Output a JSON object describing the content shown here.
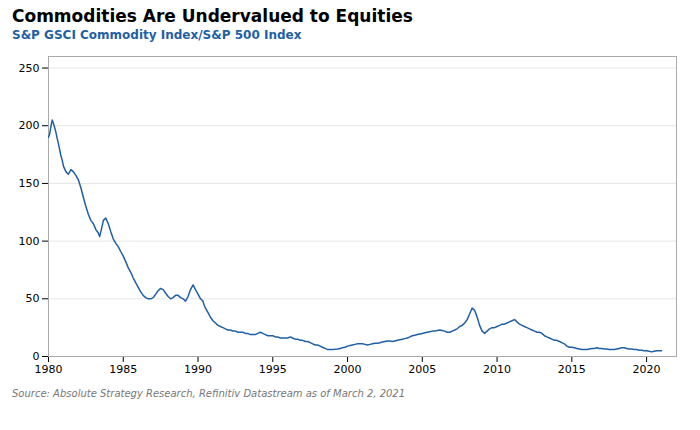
{
  "chart_data": {
    "type": "line",
    "title": "Commodities Are Undervalued to Equities",
    "subtitle": "S&P GSCI Commodity Index/S&P 500 Index",
    "source": "Source: Absolute Strategy Research, Refinitiv Datastream as of March 2, 2021",
    "color": "#1f5fa6",
    "grid": true,
    "xlim": [
      1980,
      2022
    ],
    "ylim": [
      0,
      260
    ],
    "xticks": [
      1980,
      1985,
      1990,
      1995,
      2000,
      2005,
      2010,
      2015,
      2020
    ],
    "yticks": [
      0,
      50,
      100,
      150,
      200,
      250
    ],
    "x": [
      1980.0,
      1980.08,
      1980.17,
      1980.25,
      1980.33,
      1980.42,
      1980.5,
      1980.58,
      1980.67,
      1980.75,
      1980.83,
      1980.92,
      1981.0,
      1981.17,
      1981.33,
      1981.5,
      1981.67,
      1981.83,
      1982.0,
      1982.17,
      1982.33,
      1982.5,
      1982.67,
      1982.83,
      1983.0,
      1983.17,
      1983.33,
      1983.42,
      1983.5,
      1983.67,
      1983.83,
      1984.0,
      1984.17,
      1984.33,
      1984.5,
      1984.67,
      1984.83,
      1985.0,
      1985.17,
      1985.33,
      1985.5,
      1985.67,
      1985.83,
      1986.0,
      1986.17,
      1986.33,
      1986.5,
      1986.67,
      1986.83,
      1987.0,
      1987.17,
      1987.33,
      1987.5,
      1987.67,
      1987.83,
      1988.0,
      1988.17,
      1988.33,
      1988.5,
      1988.67,
      1988.83,
      1989.0,
      1989.17,
      1989.33,
      1989.5,
      1989.67,
      1989.83,
      1990.0,
      1990.17,
      1990.33,
      1990.42,
      1990.5,
      1990.67,
      1990.83,
      1991.0,
      1991.17,
      1991.33,
      1991.5,
      1991.67,
      1991.83,
      1992.0,
      1992.17,
      1992.33,
      1992.5,
      1992.67,
      1992.83,
      1993.0,
      1993.17,
      1993.33,
      1993.5,
      1993.67,
      1993.83,
      1994.0,
      1994.17,
      1994.33,
      1994.5,
      1994.67,
      1994.83,
      1995.0,
      1995.17,
      1995.33,
      1995.5,
      1995.67,
      1995.83,
      1996.0,
      1996.17,
      1996.33,
      1996.5,
      1996.67,
      1996.83,
      1997.0,
      1997.17,
      1997.33,
      1997.5,
      1997.67,
      1997.83,
      1998.0,
      1998.17,
      1998.33,
      1998.5,
      1998.67,
      1998.83,
      1999.0,
      1999.17,
      1999.33,
      1999.5,
      1999.67,
      1999.83,
      2000.0,
      2000.17,
      2000.33,
      2000.5,
      2000.67,
      2000.83,
      2001.0,
      2001.17,
      2001.33,
      2001.5,
      2001.67,
      2001.83,
      2002.0,
      2002.17,
      2002.33,
      2002.5,
      2002.67,
      2002.83,
      2003.0,
      2003.17,
      2003.33,
      2003.5,
      2003.67,
      2003.83,
      2004.0,
      2004.17,
      2004.33,
      2004.5,
      2004.67,
      2004.83,
      2005.0,
      2005.17,
      2005.33,
      2005.5,
      2005.67,
      2005.83,
      2006.0,
      2006.17,
      2006.33,
      2006.5,
      2006.67,
      2006.83,
      2007.0,
      2007.17,
      2007.33,
      2007.5,
      2007.67,
      2007.83,
      2008.0,
      2008.17,
      2008.33,
      2008.5,
      2008.67,
      2008.83,
      2009.0,
      2009.17,
      2009.33,
      2009.5,
      2009.67,
      2009.83,
      2010.0,
      2010.17,
      2010.33,
      2010.5,
      2010.67,
      2010.83,
      2011.0,
      2011.17,
      2011.33,
      2011.5,
      2011.67,
      2011.83,
      2012.0,
      2012.17,
      2012.33,
      2012.5,
      2012.67,
      2012.83,
      2013.0,
      2013.17,
      2013.33,
      2013.5,
      2013.67,
      2013.83,
      2014.0,
      2014.17,
      2014.33,
      2014.5,
      2014.67,
      2014.83,
      2015.0,
      2015.17,
      2015.33,
      2015.5,
      2015.67,
      2015.83,
      2016.0,
      2016.17,
      2016.33,
      2016.5,
      2016.67,
      2016.83,
      2017.0,
      2017.17,
      2017.33,
      2017.5,
      2017.67,
      2017.83,
      2018.0,
      2018.17,
      2018.33,
      2018.5,
      2018.67,
      2018.83,
      2019.0,
      2019.17,
      2019.33,
      2019.5,
      2019.67,
      2019.83,
      2020.0,
      2020.17,
      2020.33,
      2020.5,
      2020.67,
      2020.83,
      2021.0
    ],
    "values": [
      190,
      193,
      200,
      205,
      202,
      198,
      194,
      189,
      184,
      179,
      174,
      170,
      165,
      160,
      158,
      162,
      160,
      157,
      153,
      146,
      138,
      130,
      123,
      118,
      115,
      110,
      107,
      104,
      108,
      118,
      120,
      115,
      108,
      102,
      98,
      95,
      91,
      87,
      82,
      77,
      73,
      68,
      64,
      60,
      56,
      53,
      51,
      50,
      50,
      51,
      54,
      57,
      59,
      58,
      55,
      52,
      50,
      51,
      53,
      53,
      51,
      50,
      48,
      52,
      58,
      62,
      58,
      54,
      50,
      48,
      44,
      42,
      38,
      34,
      31,
      29,
      27,
      26,
      25,
      24,
      23,
      23,
      22,
      22,
      21,
      21,
      21,
      20,
      20,
      19,
      19,
      19,
      20,
      21,
      20,
      19,
      18,
      18,
      18,
      17,
      17,
      16,
      16,
      16,
      16,
      17,
      16,
      15,
      15,
      14,
      14,
      13,
      13,
      12,
      11,
      10,
      10,
      9,
      8,
      7,
      6,
      6,
      6,
      6.2,
      6.5,
      7,
      7.5,
      8,
      9,
      9.5,
      10,
      10.5,
      11,
      11,
      11,
      10.5,
      10,
      10.5,
      11,
      11.5,
      11.5,
      12,
      12.5,
      13,
      13.5,
      13.5,
      13,
      13.5,
      14,
      14.5,
      15,
      15.5,
      16,
      17,
      18,
      18.5,
      19,
      19.5,
      20,
      20.5,
      21,
      21.5,
      22,
      22,
      22.5,
      23,
      22.5,
      22,
      21,
      21,
      22,
      23,
      24,
      26,
      27,
      29,
      32,
      37,
      42,
      40,
      34,
      27,
      22,
      20,
      22,
      24,
      25,
      25,
      26,
      27,
      28,
      28,
      29,
      30,
      31,
      32,
      30,
      28,
      27,
      26,
      25,
      24,
      23,
      22,
      21,
      21,
      20,
      18,
      17,
      16,
      15,
      14,
      14,
      13,
      12,
      11,
      9,
      8,
      8,
      7.5,
      7,
      6.5,
      6,
      6,
      6,
      6.5,
      7,
      7,
      7.5,
      7,
      7,
      6.5,
      6.5,
      6,
      6,
      6,
      6.5,
      7,
      7.5,
      7.5,
      7,
      6.5,
      6.5,
      6,
      6,
      5.5,
      5.5,
      5,
      5,
      4.5,
      4,
      4.5,
      5,
      5,
      5
    ]
  }
}
